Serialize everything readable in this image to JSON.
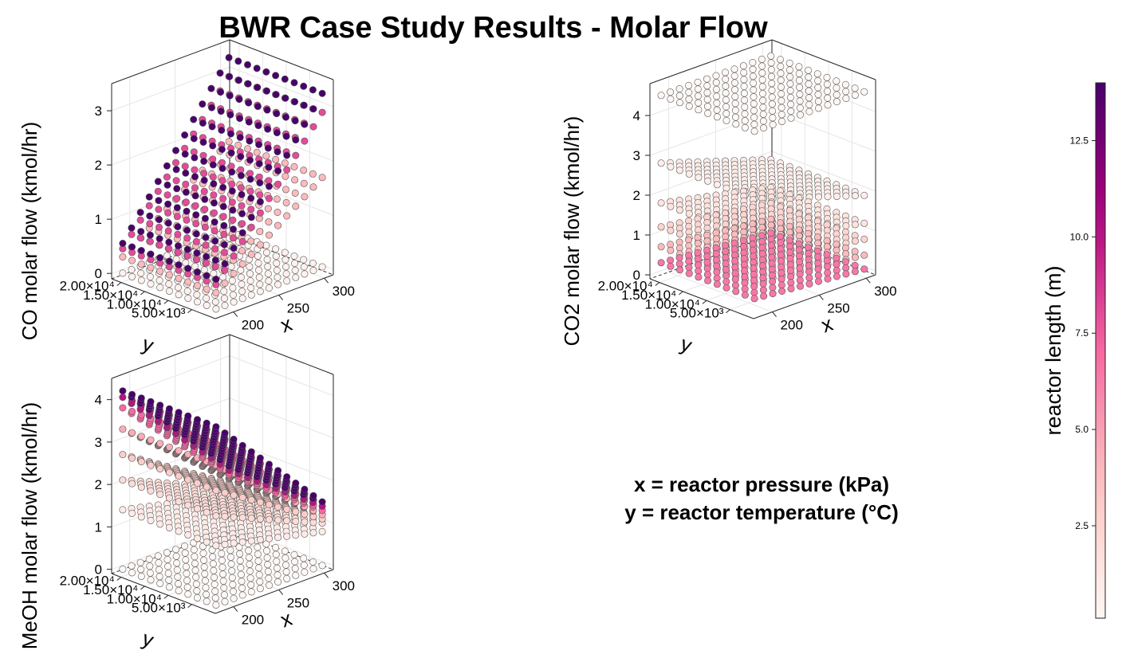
{
  "title": "BWR Case Study Results - Molar Flow",
  "notes": {
    "x_meaning": "x = reactor pressure (kPa)",
    "y_meaning": "y = reactor temperature (°C)"
  },
  "colorbar": {
    "label": "reactor length (m)",
    "colormap": "RdPu",
    "range": [
      0.1,
      14.0
    ],
    "ticks": [
      {
        "value": 2.5,
        "label": "2.5"
      },
      {
        "value": 5.0,
        "label": "5.0"
      },
      {
        "value": 7.5,
        "label": "7.5"
      },
      {
        "value": 10.0,
        "label": "10.0"
      },
      {
        "value": 12.5,
        "label": "12.5"
      }
    ]
  },
  "chart_data": [
    {
      "type": "scatter3d",
      "zlabel": "CO molar flow (kmol/hr)",
      "xlabel": "x",
      "ylabel": "y",
      "x_ticks": [
        "200",
        "250",
        "300"
      ],
      "x_tick_values": [
        200,
        250,
        300
      ],
      "y_ticks": [
        "5.00×10³",
        "1.00×10⁴",
        "1.50×10⁴",
        "2.00×10⁴"
      ],
      "y_tick_values": [
        5000,
        10000,
        15000,
        20000
      ],
      "z_ticks": [
        "0",
        "1",
        "2",
        "3"
      ],
      "z_tick_values": [
        0,
        1,
        2,
        3
      ],
      "xlim": [
        180,
        310
      ],
      "ylim": [
        0,
        22000
      ],
      "zlim": [
        -0.1,
        3.5
      ],
      "grid": true,
      "series": [
        {
          "reactor_length": 0.5,
          "z_at_x_min": 0.0,
          "z_at_x_max": 0.05
        },
        {
          "reactor_length": 4.0,
          "z_at_x_min": 0.3,
          "z_at_x_max": 1.7
        },
        {
          "reactor_length": 8.0,
          "z_at_x_min": 0.45,
          "z_at_x_max": 2.9
        },
        {
          "reactor_length": 14.0,
          "z_at_x_min": 0.55,
          "z_at_x_max": 3.25
        }
      ]
    },
    {
      "type": "scatter3d",
      "zlabel": "CO2 molar flow (kmol/hr)",
      "xlabel": "x",
      "ylabel": "y",
      "x_ticks": [
        "200",
        "250",
        "300"
      ],
      "x_tick_values": [
        200,
        250,
        300
      ],
      "y_ticks": [
        "5.00×10³",
        "1.00×10⁴",
        "1.50×10⁴",
        "2.00×10⁴"
      ],
      "y_tick_values": [
        5000,
        10000,
        15000,
        20000
      ],
      "z_ticks": [
        "0",
        "1",
        "2",
        "3",
        "4"
      ],
      "z_tick_values": [
        0,
        1,
        2,
        3,
        4
      ],
      "xlim": [
        180,
        310
      ],
      "ylim": [
        0,
        22000
      ],
      "zlim": [
        -0.1,
        4.8
      ],
      "grid": true,
      "series": [
        {
          "reactor_length": 0.1,
          "z_at_x_min": 4.5,
          "z_at_x_max": 4.5
        },
        {
          "reactor_length": 0.8,
          "z_at_x_min": 2.8,
          "z_at_x_max": 1.9
        },
        {
          "reactor_length": 1.5,
          "z_at_x_min": 1.8,
          "z_at_x_max": 1.2
        },
        {
          "reactor_length": 2.5,
          "z_at_x_min": 1.2,
          "z_at_x_max": 0.8
        },
        {
          "reactor_length": 4.0,
          "z_at_x_min": 0.7,
          "z_at_x_max": 0.4
        },
        {
          "reactor_length": 6.5,
          "z_at_x_min": 0.3,
          "z_at_x_max": 0.05
        }
      ]
    },
    {
      "type": "scatter3d",
      "zlabel": "MeOH molar flow (kmol/hr)",
      "xlabel": "x",
      "ylabel": "y",
      "x_ticks": [
        "200",
        "250",
        "300"
      ],
      "x_tick_values": [
        200,
        250,
        300
      ],
      "y_ticks": [
        "5.00×10³",
        "1.00×10⁴",
        "1.50×10⁴",
        "2.00×10⁴"
      ],
      "y_tick_values": [
        5000,
        10000,
        15000,
        20000
      ],
      "z_ticks": [
        "0",
        "1",
        "2",
        "3",
        "4"
      ],
      "z_tick_values": [
        0,
        1,
        2,
        3,
        4
      ],
      "xlim": [
        180,
        310
      ],
      "ylim": [
        0,
        22000
      ],
      "zlim": [
        -0.1,
        4.5
      ],
      "grid": true,
      "series": [
        {
          "reactor_length": 0.1,
          "z_at_x_min": 0.0,
          "z_at_x_max": 0.0
        },
        {
          "reactor_length": 1.0,
          "z_at_x_min": 1.4,
          "z_at_x_max": 0.8
        },
        {
          "reactor_length": 2.0,
          "z_at_x_min": 2.1,
          "z_at_x_max": 1.0
        },
        {
          "reactor_length": 3.0,
          "z_at_x_min": 2.7,
          "z_at_x_max": 1.1
        },
        {
          "reactor_length": 4.5,
          "z_at_x_min": 3.3,
          "z_at_x_max": 1.2
        },
        {
          "reactor_length": 7.0,
          "z_at_x_min": 3.8,
          "z_at_x_max": 1.3
        },
        {
          "reactor_length": 10.0,
          "z_at_x_min": 4.05,
          "z_at_x_max": 1.4
        },
        {
          "reactor_length": 14.0,
          "z_at_x_min": 4.2,
          "z_at_x_max": 1.5
        }
      ]
    }
  ]
}
